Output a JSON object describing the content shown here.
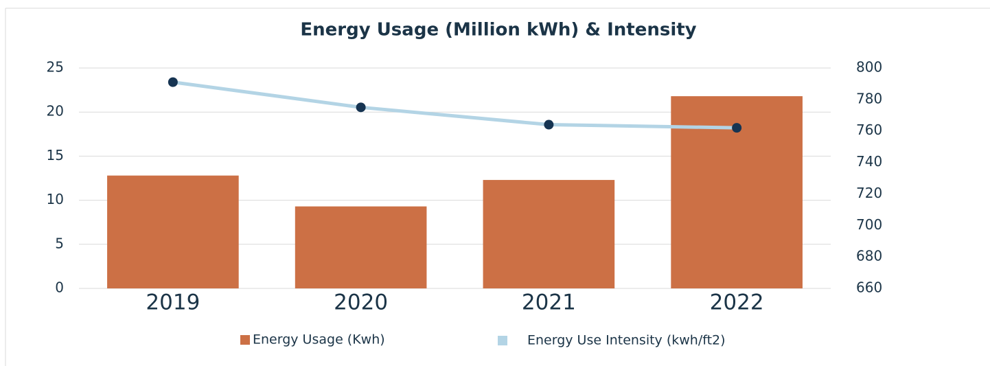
{
  "chart_data": {
    "type": "bar-line",
    "title": "Energy Usage (Million kWh) & Intensity",
    "categories": [
      "2019",
      "2020",
      "2021",
      "2022"
    ],
    "series": [
      {
        "name": "Energy Usage (Kwh)",
        "type": "bar",
        "color": "#cc7045",
        "values": [
          12.8,
          9.3,
          12.3,
          21.8
        ]
      },
      {
        "name": "Energy Use Intensity (kwh/ft2)",
        "type": "line",
        "axis": "y2",
        "color": "#b3d4e5",
        "marker_color": "#163452",
        "values": [
          791,
          775,
          764,
          762
        ]
      }
    ],
    "ylim": [
      0,
      25
    ],
    "yticks": [
      0,
      5,
      10,
      15,
      20,
      25
    ],
    "y2lim": [
      660,
      800
    ],
    "y2ticks": [
      660,
      680,
      700,
      720,
      740,
      760,
      780,
      800
    ],
    "grid": true,
    "legend": "bottom"
  }
}
